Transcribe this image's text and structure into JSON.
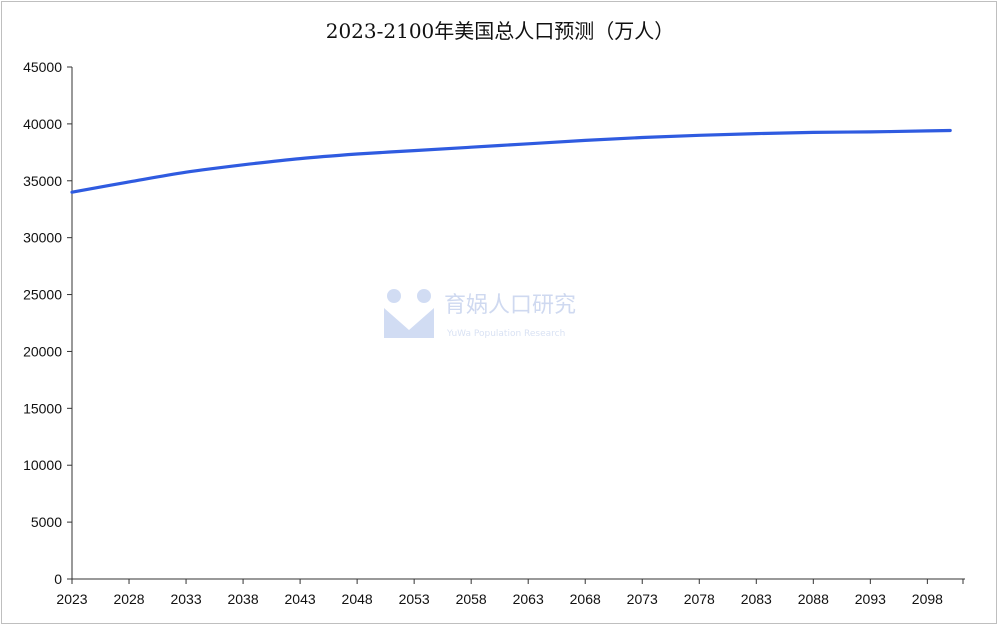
{
  "chart_data": {
    "type": "line",
    "title": "2023-2100年美国总人口预测（万人）",
    "xlabel": "",
    "ylabel": "",
    "ylim": [
      0,
      45000
    ],
    "yticks": [
      0,
      5000,
      10000,
      15000,
      20000,
      25000,
      30000,
      35000,
      40000,
      45000
    ],
    "xticks": [
      2023,
      2028,
      2033,
      2038,
      2043,
      2048,
      2053,
      2058,
      2063,
      2068,
      2073,
      2078,
      2083,
      2088,
      2093,
      2098
    ],
    "grid": false,
    "legend": "none",
    "series": [
      {
        "color": "#2f5be0",
        "x": [
          2023,
          2028,
          2033,
          2038,
          2043,
          2048,
          2053,
          2058,
          2063,
          2068,
          2073,
          2078,
          2083,
          2088,
          2093,
          2098,
          2100
        ],
        "y": [
          34000,
          34900,
          35750,
          36400,
          36950,
          37350,
          37650,
          37950,
          38250,
          38550,
          38800,
          39000,
          39150,
          39250,
          39300,
          39380,
          39420
        ]
      }
    ]
  },
  "watermark": {
    "text": "育娲人口研究",
    "subtext": "YuWa Population Research"
  }
}
